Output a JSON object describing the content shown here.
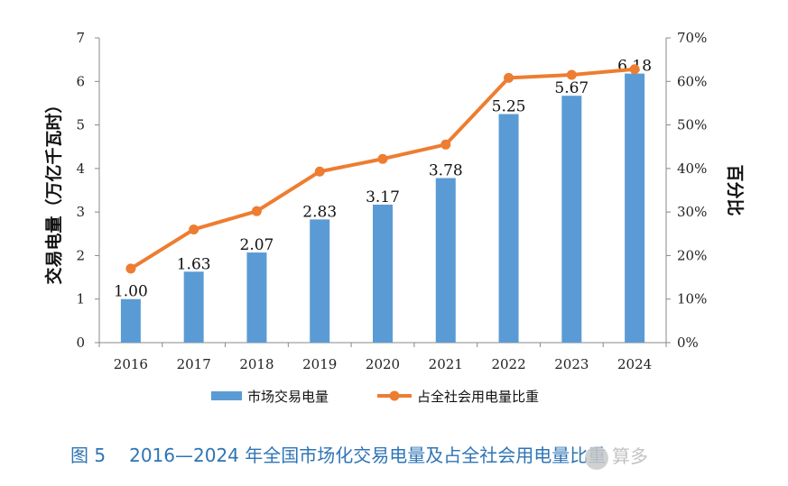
{
  "chart_data": {
    "type": "bar+line",
    "categories": [
      "2016",
      "2017",
      "2018",
      "2019",
      "2020",
      "2021",
      "2022",
      "2023",
      "2024"
    ],
    "series": [
      {
        "name": "市场交易电量",
        "type": "bar",
        "axis": "left",
        "values": [
          1.0,
          1.63,
          2.07,
          2.83,
          3.17,
          3.78,
          5.25,
          5.67,
          6.18
        ],
        "labels": [
          "1.00",
          "1.63",
          "2.07",
          "2.83",
          "3.17",
          "3.78",
          "5.25",
          "5.67",
          "6.18"
        ],
        "color": "#5b9bd5"
      },
      {
        "name": "占全社会用电量比重",
        "type": "line",
        "axis": "right",
        "values": [
          17,
          26,
          30.2,
          39.3,
          42.2,
          45.5,
          60.8,
          61.5,
          62.8
        ],
        "color": "#ed7d31"
      }
    ],
    "ylabel": "交易电量（万亿千瓦时）",
    "y2label": "百分比",
    "ylim": [
      0,
      7
    ],
    "y2lim": [
      0,
      70
    ],
    "yticks": [
      "0",
      "1",
      "2",
      "3",
      "4",
      "5",
      "6",
      "7"
    ],
    "y2ticks": [
      "0%",
      "10%",
      "20%",
      "30%",
      "40%",
      "50%",
      "60%",
      "70%"
    ],
    "legend_position": "bottom",
    "grid": false
  },
  "caption": {
    "figure": "图 5",
    "text": "2016—2024 年全国市场化交易电量及占全社会用电量比重"
  },
  "watermark": "算多"
}
